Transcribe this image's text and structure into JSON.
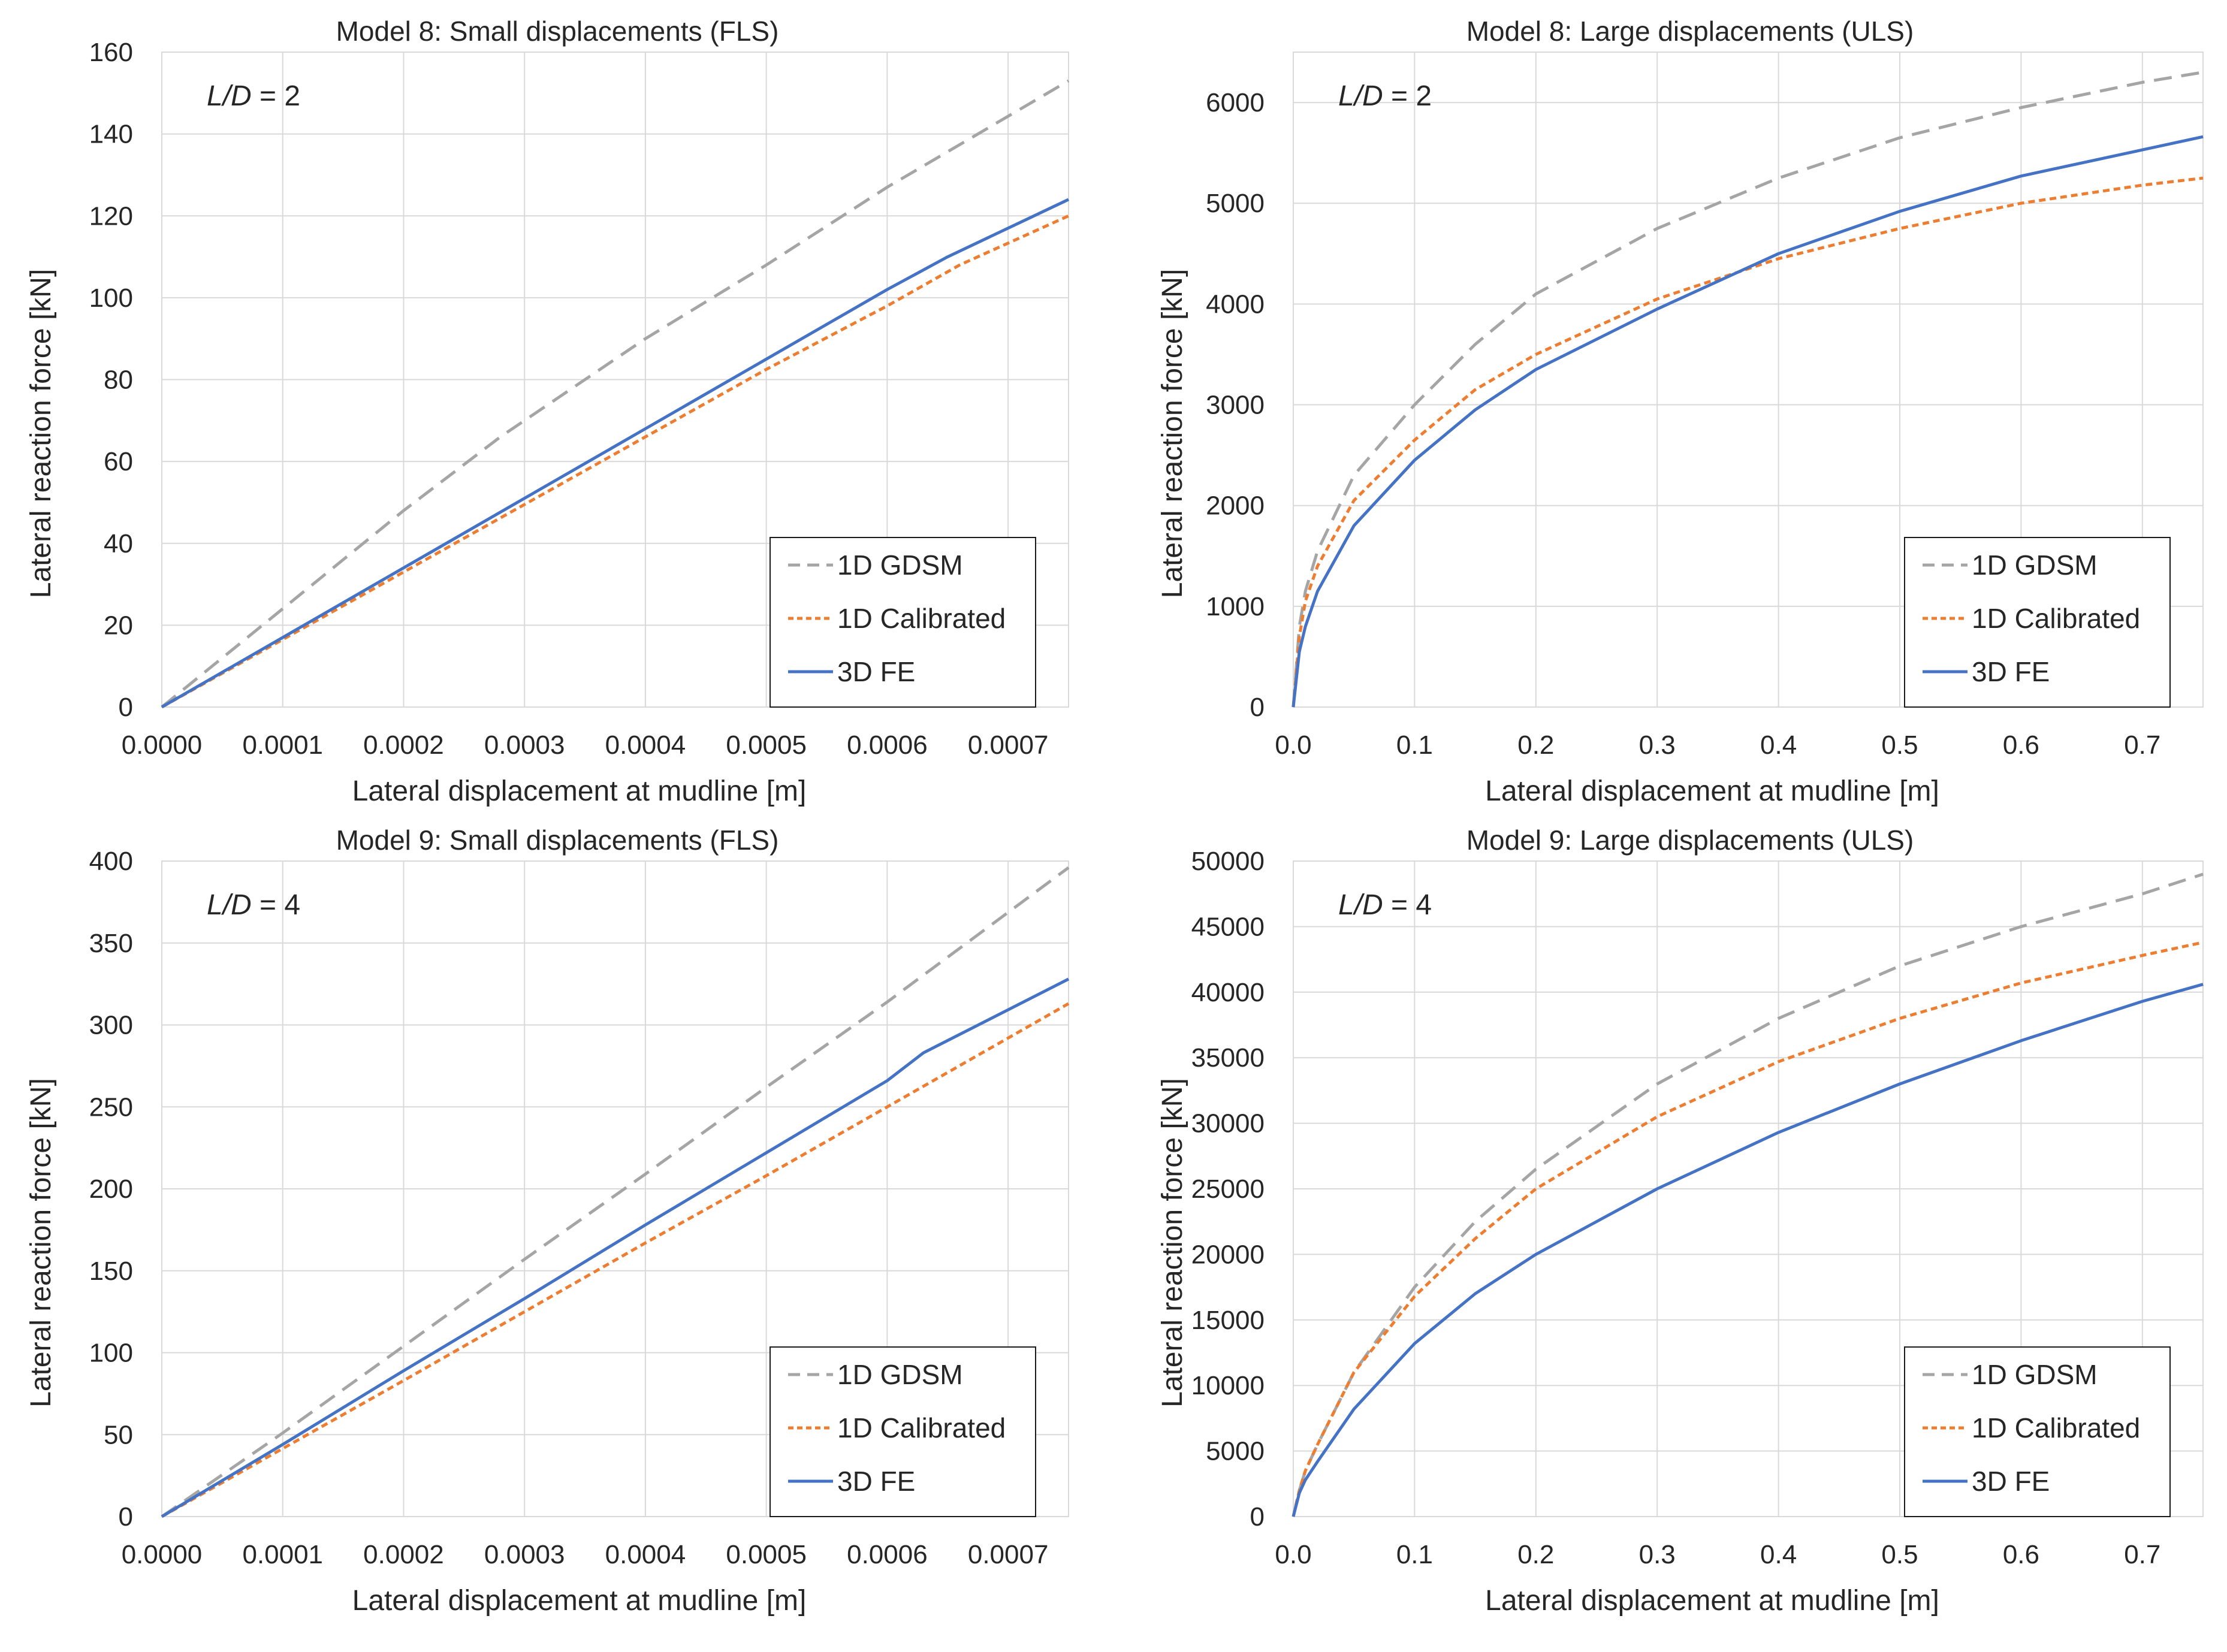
{
  "colors": {
    "gdsm": "#a5a5a5",
    "calibrated": "#ed7d31",
    "fe": "#4472c4",
    "grid": "#d9d9d9",
    "text": "#262626"
  },
  "chart_data": [
    {
      "id": "m8-small",
      "type": "line",
      "title": "Model 8: Small displacements (FLS)",
      "xlabel": "Lateral displacement at mudline [m]",
      "ylabel": "Lateral reaction force [kN]",
      "annotation": {
        "italic": "L/D",
        "rest": " = 2"
      },
      "xlim": [
        0,
        0.00075
      ],
      "ylim": [
        0,
        160
      ],
      "xticks": [
        0,
        0.0001,
        0.0002,
        0.0003,
        0.0004,
        0.0005,
        0.0006,
        0.0007
      ],
      "xtick_labels": [
        "0.0000",
        "0.0001",
        "0.0002",
        "0.0003",
        "0.0004",
        "0.0005",
        "0.0006",
        "0.0007"
      ],
      "yticks": [
        0,
        20,
        40,
        60,
        80,
        100,
        120,
        140,
        160
      ],
      "ytick_labels": [
        "0",
        "20",
        "40",
        "60",
        "80",
        "100",
        "120",
        "140",
        "160"
      ],
      "legend": {
        "position": "bottom-right"
      },
      "series": [
        {
          "name": "1D GDSM",
          "style": "gdsm",
          "x": [
            0,
            0.0001,
            0.0002,
            0.00028,
            0.0004,
            0.0005,
            0.0006,
            0.00075
          ],
          "y": [
            0,
            24,
            48,
            66,
            90,
            108,
            127,
            153
          ]
        },
        {
          "name": "1D Calibrated",
          "style": "calibrated",
          "x": [
            0,
            0.0001,
            0.0002,
            0.0003,
            0.0004,
            0.0005,
            0.0006,
            0.00066,
            0.00075
          ],
          "y": [
            0,
            16.5,
            33,
            49.5,
            66,
            82.5,
            98,
            108,
            120
          ]
        },
        {
          "name": "3D FE",
          "style": "fe",
          "x": [
            0,
            0.0001,
            0.0002,
            0.0003,
            0.0004,
            0.0005,
            0.0006,
            0.00065,
            0.00075
          ],
          "y": [
            0,
            17,
            34,
            51,
            68,
            85,
            102,
            110,
            124
          ]
        }
      ]
    },
    {
      "id": "m8-large",
      "type": "line",
      "title": "Model 8: Large displacements (ULS)",
      "xlabel": "Lateral displacement at mudline [m]",
      "ylabel": "Lateral reaction force [kN]",
      "annotation": {
        "italic": "L/D",
        "rest": " = 2"
      },
      "xlim": [
        0,
        0.75
      ],
      "ylim": [
        0,
        6500
      ],
      "xticks": [
        0,
        0.1,
        0.2,
        0.3,
        0.4,
        0.5,
        0.6,
        0.7
      ],
      "xtick_labels": [
        "0.0",
        "0.1",
        "0.2",
        "0.3",
        "0.4",
        "0.5",
        "0.6",
        "0.7"
      ],
      "yticks": [
        0,
        1000,
        2000,
        3000,
        4000,
        5000,
        6000
      ],
      "ytick_labels": [
        "0",
        "1000",
        "2000",
        "3000",
        "4000",
        "5000",
        "6000"
      ],
      "legend": {
        "position": "bottom-right"
      },
      "series": [
        {
          "name": "1D GDSM",
          "style": "gdsm",
          "x": [
            0,
            0.005,
            0.01,
            0.02,
            0.05,
            0.1,
            0.15,
            0.2,
            0.3,
            0.4,
            0.5,
            0.6,
            0.7,
            0.75
          ],
          "y": [
            0,
            800,
            1150,
            1550,
            2300,
            3000,
            3600,
            4100,
            4750,
            5250,
            5650,
            5950,
            6200,
            6300
          ]
        },
        {
          "name": "1D Calibrated",
          "style": "calibrated",
          "x": [
            0,
            0.005,
            0.01,
            0.02,
            0.05,
            0.1,
            0.15,
            0.2,
            0.3,
            0.4,
            0.5,
            0.6,
            0.7,
            0.75
          ],
          "y": [
            0,
            700,
            1050,
            1400,
            2050,
            2650,
            3150,
            3500,
            4050,
            4450,
            4750,
            5000,
            5180,
            5250
          ]
        },
        {
          "name": "3D FE",
          "style": "fe",
          "x": [
            0,
            0.005,
            0.01,
            0.02,
            0.05,
            0.1,
            0.15,
            0.2,
            0.3,
            0.4,
            0.5,
            0.6,
            0.7,
            0.75
          ],
          "y": [
            0,
            550,
            800,
            1150,
            1800,
            2450,
            2950,
            3350,
            3950,
            4500,
            4920,
            5270,
            5530,
            5660
          ]
        }
      ]
    },
    {
      "id": "m9-small",
      "type": "line",
      "title": "Model 9: Small displacements (FLS)",
      "xlabel": "Lateral displacement at mudline [m]",
      "ylabel": "Lateral reaction force [kN]",
      "annotation": {
        "italic": "L/D",
        "rest": " = 4"
      },
      "xlim": [
        0,
        0.00075
      ],
      "ylim": [
        0,
        400
      ],
      "xticks": [
        0,
        0.0001,
        0.0002,
        0.0003,
        0.0004,
        0.0005,
        0.0006,
        0.0007
      ],
      "xtick_labels": [
        "0.0000",
        "0.0001",
        "0.0002",
        "0.0003",
        "0.0004",
        "0.0005",
        "0.0006",
        "0.0007"
      ],
      "yticks": [
        0,
        50,
        100,
        150,
        200,
        250,
        300,
        350,
        400
      ],
      "ytick_labels": [
        "0",
        "50",
        "100",
        "150",
        "200",
        "250",
        "300",
        "350",
        "400"
      ],
      "legend": {
        "position": "bottom-right"
      },
      "series": [
        {
          "name": "1D GDSM",
          "style": "gdsm",
          "x": [
            0,
            0.0001,
            0.0002,
            0.0003,
            0.0004,
            0.0005,
            0.0006,
            0.00075
          ],
          "y": [
            0,
            51,
            104,
            157,
            209,
            262,
            314,
            396
          ]
        },
        {
          "name": "1D Calibrated",
          "style": "calibrated",
          "x": [
            0,
            0.0001,
            0.0002,
            0.0003,
            0.0004,
            0.0005,
            0.0006,
            0.00075
          ],
          "y": [
            0,
            41.5,
            83,
            125,
            167,
            208,
            250,
            313
          ]
        },
        {
          "name": "3D FE",
          "style": "fe",
          "x": [
            0,
            0.0001,
            0.0002,
            0.0003,
            0.0004,
            0.0005,
            0.0006,
            0.00063,
            0.00075
          ],
          "y": [
            0,
            44,
            89,
            133,
            178,
            222,
            266,
            283,
            328
          ]
        }
      ]
    },
    {
      "id": "m9-large",
      "type": "line",
      "title": "Model 9: Large displacements (ULS)",
      "xlabel": "Lateral displacement at mudline [m]",
      "ylabel": "Lateral reaction force [kN]",
      "annotation": {
        "italic": "L/D",
        "rest": " = 4"
      },
      "xlim": [
        0,
        0.75
      ],
      "ylim": [
        0,
        50000
      ],
      "xticks": [
        0,
        0.1,
        0.2,
        0.3,
        0.4,
        0.5,
        0.6,
        0.7
      ],
      "xtick_labels": [
        "0.0",
        "0.1",
        "0.2",
        "0.3",
        "0.4",
        "0.5",
        "0.6",
        "0.7"
      ],
      "yticks": [
        0,
        5000,
        10000,
        15000,
        20000,
        25000,
        30000,
        35000,
        40000,
        45000,
        50000
      ],
      "ytick_labels": [
        "0",
        "5000",
        "10000",
        "15000",
        "20000",
        "25000",
        "30000",
        "35000",
        "40000",
        "45000",
        "50000"
      ],
      "legend": {
        "position": "bottom-right"
      },
      "series": [
        {
          "name": "1D GDSM",
          "style": "gdsm",
          "x": [
            0,
            0.005,
            0.01,
            0.02,
            0.05,
            0.1,
            0.15,
            0.2,
            0.3,
            0.4,
            0.5,
            0.6,
            0.7,
            0.75
          ],
          "y": [
            0,
            2000,
            3500,
            5500,
            11000,
            17500,
            22500,
            26500,
            33000,
            38000,
            42000,
            45000,
            47500,
            49000
          ]
        },
        {
          "name": "1D Calibrated",
          "style": "calibrated",
          "x": [
            0,
            0.005,
            0.01,
            0.02,
            0.05,
            0.1,
            0.15,
            0.2,
            0.3,
            0.4,
            0.5,
            0.6,
            0.7,
            0.75
          ],
          "y": [
            0,
            2000,
            3500,
            5500,
            11000,
            16800,
            21200,
            25000,
            30500,
            34700,
            38000,
            40700,
            42800,
            43800
          ]
        },
        {
          "name": "3D FE",
          "style": "fe",
          "x": [
            0,
            0.005,
            0.01,
            0.02,
            0.05,
            0.1,
            0.15,
            0.2,
            0.3,
            0.4,
            0.5,
            0.6,
            0.7,
            0.75
          ],
          "y": [
            0,
            1800,
            2800,
            4200,
            8200,
            13200,
            17000,
            20000,
            25000,
            29300,
            33000,
            36300,
            39300,
            40600
          ]
        }
      ]
    }
  ]
}
